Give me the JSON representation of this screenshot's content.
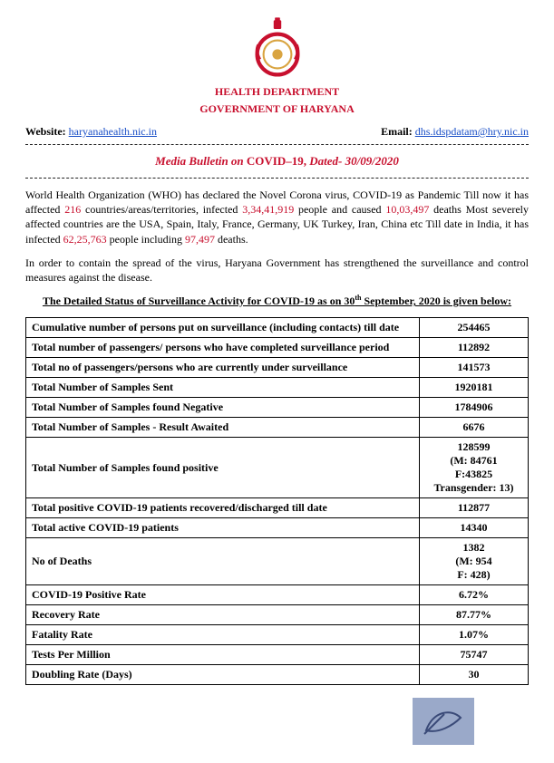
{
  "colors": {
    "red": "#c8102e",
    "link": "#1a4fc7",
    "emblem_red": "#c8102e",
    "emblem_gold": "#d9a441",
    "sig_bg": "#9aa9c9"
  },
  "header": {
    "department": "HEALTH DEPARTMENT",
    "government": "GOVERNMENT OF HARYANA",
    "website_label": "Website: ",
    "website_url": "haryanahealth.nic.in",
    "email_label": "Email: ",
    "email_addr": "dhs.idspdatam@hry.nic.in"
  },
  "bulletin": {
    "prefix": "Media Bulletin on ",
    "title_covid": "COVID–19, ",
    "title_date": "Dated- 30/09/2020"
  },
  "para1": {
    "t1": "World Health Organization (WHO) has declared the Novel Corona virus, COVID-19 as Pandemic Till now it has affected ",
    "n1": "216",
    "t2": " countries/areas/territories, infected ",
    "n2": "3,34,41,919",
    "t3": " people and caused ",
    "n3": "10,03,497",
    "t4": " deaths Most severely affected countries are the USA, Spain, Italy, France, Germany, UK Turkey, Iran, China etc Till date in India, it has infected ",
    "n4": "62,25,763",
    "t5": " people including ",
    "n5": "97,497",
    "t6": " deaths."
  },
  "para2": "In order to contain the spread of the virus, Haryana Government has strengthened the surveillance and control measures against the disease.",
  "section_heading": {
    "pre": "The Detailed Status of Surveillance Activity for COVID-19 as on 30",
    "sup": "th",
    "post": " September, 2020 is given below:"
  },
  "table_rows": [
    {
      "label": "Cumulative number of persons put on surveillance (including contacts) till date",
      "value": "254465"
    },
    {
      "label": "Total number of passengers/ persons who have completed surveillance period",
      "value": "112892"
    },
    {
      "label": "Total no of passengers/persons who are currently under surveillance",
      "value": "141573"
    },
    {
      "label": "Total Number of Samples Sent",
      "value": "1920181"
    },
    {
      "label": "Total Number of Samples found Negative",
      "value": "1784906"
    },
    {
      "label": "Total Number of Samples - Result Awaited",
      "value": "6676"
    },
    {
      "label": "Total Number of Samples found positive",
      "value": "128599\n(M: 84761\nF:43825\nTransgender: 13)"
    },
    {
      "label": "Total positive COVID-19 patients recovered/discharged till date",
      "value": "112877"
    },
    {
      "label": "Total active COVID-19 patients",
      "value": "14340"
    },
    {
      "label": "No of Deaths",
      "value": "1382\n(M: 954\nF: 428)"
    },
    {
      "label": "COVID-19 Positive Rate",
      "value": "6.72%"
    },
    {
      "label": "Recovery Rate",
      "value": "87.77%"
    },
    {
      "label": "Fatality Rate",
      "value": "1.07%"
    },
    {
      "label": "Tests Per Million",
      "value": "75747"
    },
    {
      "label": "Doubling Rate (Days)",
      "value": "30"
    }
  ]
}
